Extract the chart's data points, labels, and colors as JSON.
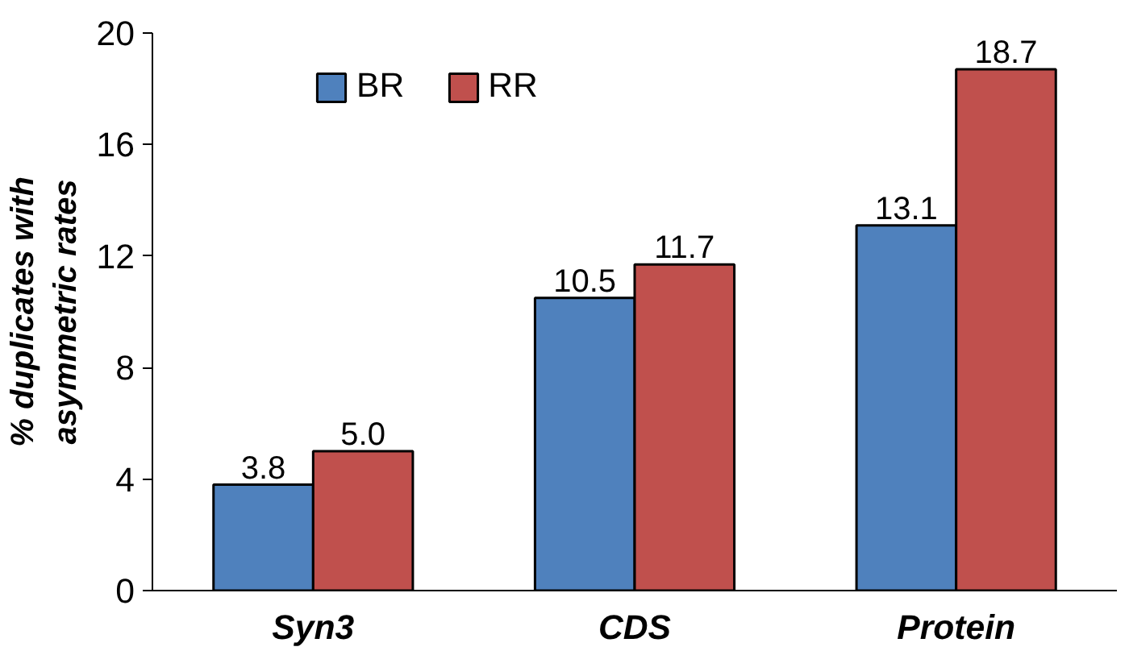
{
  "chart_data": {
    "type": "bar",
    "categories": [
      "Syn3",
      "CDS",
      "Protein"
    ],
    "series": [
      {
        "name": "BR",
        "color": "#4f81bd",
        "values": [
          3.8,
          10.5,
          13.1
        ],
        "value_labels": [
          "3.8",
          "10.5",
          "13.1"
        ]
      },
      {
        "name": "RR",
        "color": "#c0504d",
        "values": [
          5.0,
          11.7,
          18.7
        ],
        "value_labels": [
          "5.0",
          "11.7",
          "18.7"
        ]
      }
    ],
    "ylabel": "% duplicates with\nasymmetric rates",
    "ylim": [
      0,
      20
    ],
    "yticks": [
      0,
      4,
      8,
      12,
      16,
      20
    ],
    "grid": false,
    "legend": "top"
  }
}
